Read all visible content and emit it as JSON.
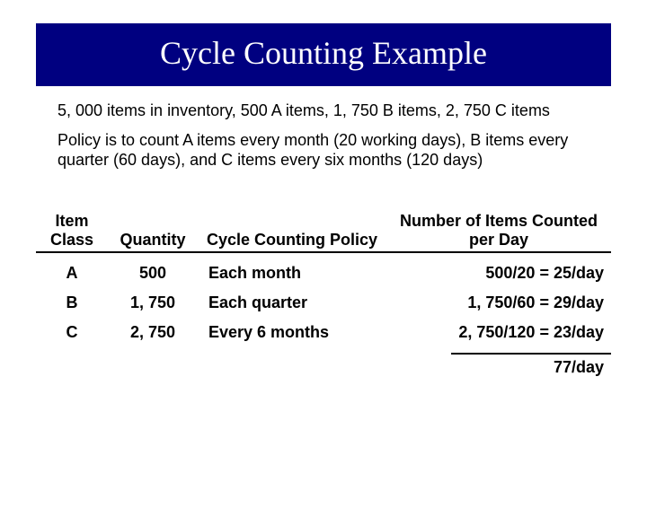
{
  "title": "Cycle Counting Example",
  "paragraphs": [
    "5, 000 items in inventory, 500 A items, 1, 750 B items, 2, 750 C items",
    "Policy is to count A items every month (20 working days), B items every quarter (60 days), and C items every six months (120 days)"
  ],
  "table": {
    "headers": {
      "class": "Item Class",
      "qty": "Quantity",
      "policy": "Cycle Counting Policy",
      "count": "Number of Items Counted per Day"
    },
    "rows": [
      {
        "class": "A",
        "qty": "500",
        "policy": "Each month",
        "count": "500/20 = 25/day"
      },
      {
        "class": "B",
        "qty": "1, 750",
        "policy": "Each quarter",
        "count": "1, 750/60 = 29/day"
      },
      {
        "class": "C",
        "qty": "2, 750",
        "policy": "Every 6 months",
        "count": "2, 750/120 = 23/day"
      }
    ],
    "total": "77/day"
  },
  "colors": {
    "title_bg": "#000080",
    "title_fg": "#ffffff",
    "text": "#000000"
  }
}
